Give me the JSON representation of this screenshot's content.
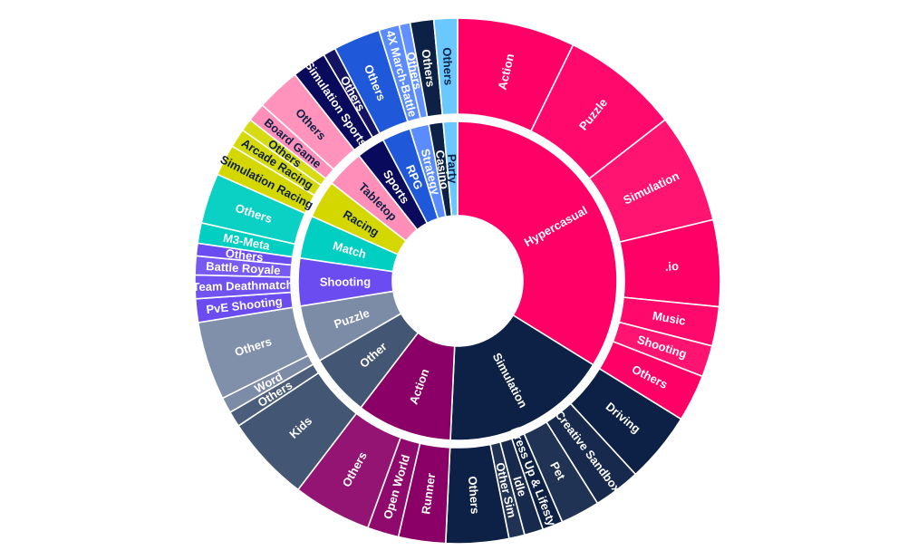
{
  "chart_data": {
    "type": "sunburst",
    "colors": {
      "Hypercasual": "#ff0066",
      "Simulation": "#0d2146",
      "Action": "#8a0066",
      "Other": "#435674",
      "Puzzle": "#7c8ba6",
      "Shooting": "#6a4cf0",
      "Match": "#00cfc2",
      "Racing": "#d4d800",
      "Tabletop": "#ff8fb8",
      "Sports": "#0a0a5c",
      "RPG": "#1f59d9",
      "Strategy": "#5b8cff",
      "Casino": "#0d2146",
      "Party": "#6bc8ff"
    },
    "hierarchy": [
      {
        "name": "Hypercasual",
        "value": 35.0,
        "children": [
          {
            "name": "Action",
            "value": 7.5
          },
          {
            "name": "Puzzle",
            "value": 7.5
          },
          {
            "name": "Simulation",
            "value": 7.0
          },
          {
            "name": ".io",
            "value": 5.5
          },
          {
            "name": "Music",
            "value": 2.5
          },
          {
            "name": "Shooting",
            "value": 2.0
          },
          {
            "name": "Others",
            "value": 3.0
          }
        ]
      },
      {
        "name": "Simulation",
        "value": 17.5,
        "children": [
          {
            "name": "Driving",
            "value": 4.5
          },
          {
            "name": "Creative Sandbox",
            "value": 3.0
          },
          {
            "name": "Pet",
            "value": 2.5
          },
          {
            "name": "Dress Up & Lifestyle",
            "value": 1.3
          },
          {
            "name": "Idle",
            "value": 1.2
          },
          {
            "name": "Other Sim",
            "value": 1.0
          },
          {
            "name": "Others",
            "value": 4.0
          }
        ]
      },
      {
        "name": "Action",
        "value": 10.0,
        "children": [
          {
            "name": "Runner",
            "value": 3.0
          },
          {
            "name": "Open World",
            "value": 2.0
          },
          {
            "name": "Others",
            "value": 5.0
          }
        ]
      },
      {
        "name": "Other",
        "value": 6.5,
        "children": [
          {
            "name": "Kids",
            "value": 5.5
          },
          {
            "name": "Others",
            "value": 1.0
          }
        ]
      },
      {
        "name": "Puzzle",
        "value": 6.0,
        "children": [
          {
            "name": "Word",
            "value": 1.0
          },
          {
            "name": "Others",
            "value": 5.0
          }
        ]
      },
      {
        "name": "Shooting",
        "value": 5.0,
        "children": [
          {
            "name": "PvE Shooting",
            "value": 1.5
          },
          {
            "name": "Team Deathmatch",
            "value": 1.5
          },
          {
            "name": "Battle Royale",
            "value": 1.2
          },
          {
            "name": "Others",
            "value": 0.8
          }
        ]
      },
      {
        "name": "Match",
        "value": 4.5,
        "children": [
          {
            "name": "M3-Meta",
            "value": 1.3
          },
          {
            "name": "Others",
            "value": 3.2
          }
        ]
      },
      {
        "name": "Racing",
        "value": 4.0,
        "children": [
          {
            "name": "Simulation Racing",
            "value": 2.0
          },
          {
            "name": "Arcade Racing",
            "value": 1.2
          },
          {
            "name": "Others",
            "value": 0.8
          }
        ]
      },
      {
        "name": "Tabletop",
        "value": 4.0,
        "children": [
          {
            "name": "Board Game",
            "value": 1.2
          },
          {
            "name": "Others",
            "value": 2.8
          }
        ]
      },
      {
        "name": "Sports",
        "value": 3.0,
        "children": [
          {
            "name": "Simulation Sports",
            "value": 2.2
          },
          {
            "name": "Others",
            "value": 0.8
          }
        ]
      },
      {
        "name": "RPG",
        "value": 3.0,
        "children": [
          {
            "name": "Others",
            "value": 3.0
          }
        ]
      },
      {
        "name": "Strategy",
        "value": 2.0,
        "children": [
          {
            "name": "4X March-Battle",
            "value": 1.3
          },
          {
            "name": "Others",
            "value": 0.7
          }
        ]
      },
      {
        "name": "Casino",
        "value": 1.5,
        "children": [
          {
            "name": "Others",
            "value": 1.5
          }
        ]
      },
      {
        "name": "Party",
        "value": 1.5,
        "children": [
          {
            "name": "Others",
            "value": 1.5
          }
        ]
      }
    ]
  }
}
